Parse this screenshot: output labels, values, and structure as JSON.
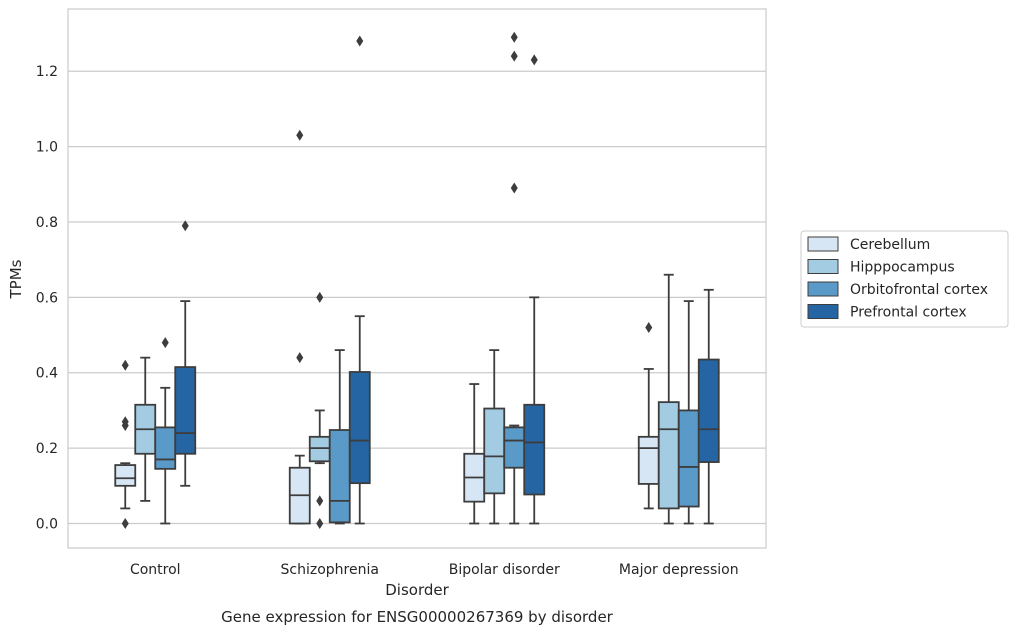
{
  "chart_data": {
    "type": "box",
    "title": "Gene expression for ENSG00000267369 by disorder",
    "xlabel": "Disorder",
    "ylabel": "TPMs",
    "ylim": [
      -0.065,
      1.365
    ],
    "yticks": [
      0.0,
      0.2,
      0.4,
      0.6,
      0.8,
      1.0,
      1.2
    ],
    "ytick_labels": [
      "0.0",
      "0.2",
      "0.4",
      "0.6",
      "0.8",
      "1.0",
      "1.2"
    ],
    "grid": true,
    "legend_position": "right",
    "categories": [
      "Control",
      "Schizophrenia",
      "Bipolar disorder",
      "Major depression"
    ],
    "series": [
      {
        "name": "Cerebellum",
        "color": "#d6e6f4",
        "boxes": [
          {
            "whislo": 0.04,
            "q1": 0.1,
            "med": 0.12,
            "q3": 0.155,
            "whishi": 0.16,
            "fliers": [
              0.0,
              0.26,
              0.27,
              0.42
            ]
          },
          {
            "whislo": 0.0,
            "q1": 0.0,
            "med": 0.075,
            "q3": 0.148,
            "whishi": 0.18,
            "fliers": [
              0.44,
              1.03
            ]
          },
          {
            "whislo": 0.0,
            "q1": 0.058,
            "med": 0.122,
            "q3": 0.185,
            "whishi": 0.37,
            "fliers": []
          },
          {
            "whislo": 0.04,
            "q1": 0.105,
            "med": 0.2,
            "q3": 0.23,
            "whishi": 0.41,
            "fliers": [
              0.52
            ]
          }
        ]
      },
      {
        "name": "Hipppocampus",
        "color": "#a3cbe2",
        "boxes": [
          {
            "whislo": 0.06,
            "q1": 0.185,
            "med": 0.25,
            "q3": 0.315,
            "whishi": 0.44,
            "fliers": []
          },
          {
            "whislo": 0.16,
            "q1": 0.165,
            "med": 0.2,
            "q3": 0.23,
            "whishi": 0.3,
            "fliers": [
              0.0,
              0.06,
              0.6
            ]
          },
          {
            "whislo": 0.0,
            "q1": 0.08,
            "med": 0.178,
            "q3": 0.305,
            "whishi": 0.46,
            "fliers": []
          },
          {
            "whislo": 0.0,
            "q1": 0.04,
            "med": 0.25,
            "q3": 0.322,
            "whishi": 0.66,
            "fliers": []
          }
        ]
      },
      {
        "name": "Orbitofrontal cortex",
        "color": "#5a9ac8",
        "boxes": [
          {
            "whislo": 0.0,
            "q1": 0.145,
            "med": 0.17,
            "q3": 0.255,
            "whishi": 0.36,
            "fliers": [
              0.48
            ]
          },
          {
            "whislo": 0.0,
            "q1": 0.003,
            "med": 0.06,
            "q3": 0.248,
            "whishi": 0.46,
            "fliers": []
          },
          {
            "whislo": 0.0,
            "q1": 0.148,
            "med": 0.22,
            "q3": 0.255,
            "whishi": 0.26,
            "fliers": [
              0.89,
              1.24,
              1.29
            ]
          },
          {
            "whislo": 0.0,
            "q1": 0.045,
            "med": 0.15,
            "q3": 0.3,
            "whishi": 0.59,
            "fliers": []
          }
        ]
      },
      {
        "name": "Prefrontal cortex",
        "color": "#2565a3",
        "boxes": [
          {
            "whislo": 0.1,
            "q1": 0.185,
            "med": 0.24,
            "q3": 0.415,
            "whishi": 0.59,
            "fliers": [
              0.79
            ]
          },
          {
            "whislo": 0.0,
            "q1": 0.107,
            "med": 0.22,
            "q3": 0.402,
            "whishi": 0.55,
            "fliers": [
              1.28
            ]
          },
          {
            "whislo": 0.0,
            "q1": 0.077,
            "med": 0.215,
            "q3": 0.315,
            "whishi": 0.6,
            "fliers": [
              1.23
            ]
          },
          {
            "whislo": 0.0,
            "q1": 0.163,
            "med": 0.25,
            "q3": 0.435,
            "whishi": 0.62,
            "fliers": []
          }
        ]
      }
    ]
  }
}
